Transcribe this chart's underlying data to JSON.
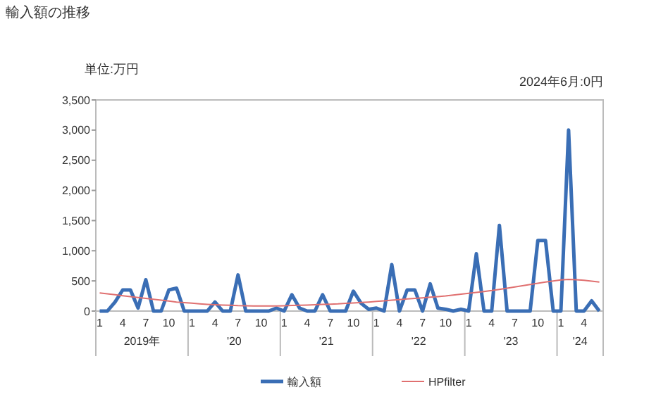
{
  "chart_data": {
    "type": "line",
    "title": "輸入額の推移",
    "annotations": [
      "単位:万円",
      "2024年6月:0円",
      "2019年",
      "'20",
      "'21",
      "'22",
      "'23",
      "'24"
    ],
    "categories": [
      "1",
      null,
      null,
      "4",
      null,
      null,
      "7",
      null,
      null,
      "10",
      null,
      null,
      "1",
      null,
      null,
      "4",
      null,
      null,
      "7",
      null,
      null,
      "10",
      null,
      null,
      "1",
      null,
      null,
      "4",
      null,
      null,
      "7",
      null,
      null,
      "10",
      null,
      null,
      "1",
      null,
      null,
      "4",
      null,
      null,
      "7",
      null,
      null,
      "10",
      null,
      null,
      "1",
      null,
      null,
      "4",
      null,
      null,
      "7",
      null,
      null,
      "10",
      null,
      null,
      "1",
      null,
      null,
      "4",
      null,
      null
    ],
    "series": [
      {
        "name": "輸入額",
        "color": "#3a6eb5",
        "values": [
          0,
          0,
          150,
          350,
          350,
          50,
          520,
          0,
          0,
          350,
          380,
          0,
          0,
          0,
          0,
          150,
          0,
          0,
          600,
          0,
          0,
          0,
          0,
          50,
          0,
          270,
          50,
          0,
          0,
          270,
          0,
          0,
          0,
          330,
          130,
          30,
          50,
          0,
          770,
          0,
          350,
          350,
          0,
          450,
          50,
          30,
          0,
          30,
          0,
          950,
          0,
          0,
          1420,
          0,
          0,
          0,
          0,
          1170,
          1170,
          0,
          0,
          3000,
          0,
          0,
          170,
          0
        ]
      },
      {
        "name": "HPfilter",
        "color": "#e07070",
        "values": [
          300,
          285,
          270,
          255,
          240,
          225,
          210,
          195,
          180,
          165,
          150,
          140,
          130,
          120,
          112,
          105,
          100,
          95,
          90,
          88,
          86,
          85,
          85,
          86,
          88,
          92,
          96,
          100,
          105,
          110,
          115,
          120,
          128,
          135,
          142,
          150,
          160,
          170,
          180,
          190,
          200,
          210,
          220,
          230,
          240,
          250,
          265,
          280,
          295,
          310,
          325,
          340,
          360,
          380,
          400,
          420,
          440,
          460,
          480,
          500,
          515,
          525,
          520,
          510,
          495,
          480
        ]
      }
    ],
    "ylim": [
      0,
      3500
    ],
    "yticks": [
      0,
      {
        "value": 500,
        "label": "500"
      },
      {
        "value": 1000,
        "label": "1,000"
      },
      {
        "value": 1500,
        "label": "1,500"
      },
      {
        "value": 2000,
        "label": "2,000"
      },
      {
        "value": 2500,
        "label": "2,500"
      },
      {
        "value": 3000,
        "label": "3,000"
      },
      {
        "value": 3500,
        "label": "3,500"
      }
    ],
    "legend": "bottom"
  }
}
